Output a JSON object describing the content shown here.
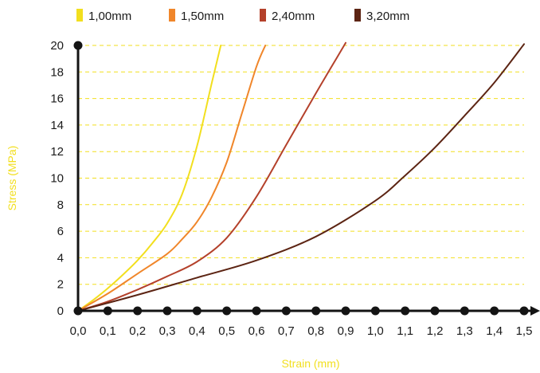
{
  "chart_data": {
    "type": "line",
    "title": "",
    "xlabel": "Strain (mm)",
    "ylabel": "Stress (MPa)",
    "xlim": [
      0.0,
      1.5
    ],
    "ylim": [
      0,
      20
    ],
    "x_ticks": [
      "0,0",
      "0,1",
      "0,2",
      "0,3",
      "0,4",
      "0,5",
      "0,6",
      "0,7",
      "0,8",
      "0,9",
      "1,0",
      "1,1",
      "1,2",
      "1,3",
      "1,4",
      "1,5"
    ],
    "y_ticks": [
      "0",
      "2",
      "4",
      "6",
      "8",
      "10",
      "12",
      "14",
      "16",
      "18",
      "20"
    ],
    "grid": "horizontal dashed",
    "legend_position": "top",
    "series": [
      {
        "name": "1,00mm",
        "color": "#f2df1e",
        "x": [
          0.0,
          0.05,
          0.1,
          0.15,
          0.2,
          0.25,
          0.3,
          0.35,
          0.4,
          0.45,
          0.48
        ],
        "y": [
          0.0,
          0.8,
          1.7,
          2.7,
          3.8,
          5.1,
          6.6,
          8.8,
          12.4,
          17.2,
          20.0
        ]
      },
      {
        "name": "1,50mm",
        "color": "#f0862a",
        "x": [
          0.0,
          0.1,
          0.2,
          0.3,
          0.35,
          0.4,
          0.45,
          0.5,
          0.55,
          0.6,
          0.63
        ],
        "y": [
          0.0,
          1.3,
          2.8,
          4.3,
          5.4,
          6.7,
          8.6,
          11.2,
          14.8,
          18.4,
          20.0
        ]
      },
      {
        "name": "2,40mm",
        "color": "#b4412b",
        "x": [
          0.0,
          0.1,
          0.2,
          0.3,
          0.4,
          0.5,
          0.6,
          0.7,
          0.8,
          0.85,
          0.9
        ],
        "y": [
          0.0,
          0.7,
          1.6,
          2.6,
          3.7,
          5.5,
          8.6,
          12.5,
          16.4,
          18.3,
          20.2
        ]
      },
      {
        "name": "3,20mm",
        "color": "#5c2413",
        "x": [
          0.0,
          0.2,
          0.4,
          0.6,
          0.8,
          1.0,
          1.1,
          1.2,
          1.3,
          1.4,
          1.5
        ],
        "y": [
          0.0,
          1.2,
          2.5,
          3.8,
          5.6,
          8.3,
          10.2,
          12.3,
          14.7,
          17.2,
          20.1
        ]
      }
    ]
  },
  "colors": {
    "axis": "#141414",
    "grid": "#f2df1e",
    "axis_title": "#f2df1e"
  }
}
